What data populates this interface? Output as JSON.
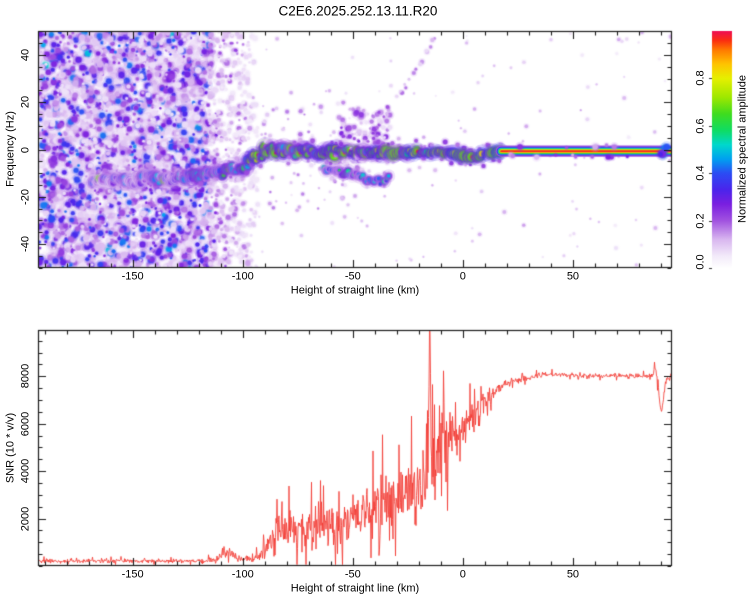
{
  "title": "C2E6.2025.252.13.11.R20",
  "chart_data": [
    {
      "type": "heatmap",
      "title": "C2E6.2025.252.13.11.R20",
      "xlabel": "Height of straight line (km)",
      "ylabel": "Frequency (Hz)",
      "xlim": [
        -193,
        95
      ],
      "ylim": [
        -50.2,
        50.2
      ],
      "xticks": [
        -150,
        -100,
        -50,
        0,
        50
      ],
      "xtick_labels": [
        "-150",
        "-100",
        "-50",
        "0",
        "50"
      ],
      "x_minor_step": 10,
      "yticks": [
        40,
        20,
        0,
        -20,
        -40
      ],
      "ytick_labels": [
        "40",
        "20",
        "0",
        "-20",
        "-40"
      ],
      "y_minor_step": 5,
      "grid": false,
      "colorbar": {
        "label": "Normalized spectral amplitude",
        "ticks": [
          0,
          0.2,
          0.4,
          0.6,
          0.8
        ],
        "tick_labels": [
          "0.0",
          "0.2",
          "0.4",
          "0.6",
          "0.8"
        ],
        "lim": [
          0,
          1
        ],
        "stops": [
          [
            0.0,
            "#ffffff"
          ],
          [
            0.05,
            "#f3ebfa"
          ],
          [
            0.12,
            "#d9b7f0"
          ],
          [
            0.2,
            "#a152e0"
          ],
          [
            0.27,
            "#7a1fe0"
          ],
          [
            0.33,
            "#4b24ec"
          ],
          [
            0.4,
            "#2b4df4"
          ],
          [
            0.46,
            "#00a1f0"
          ],
          [
            0.52,
            "#00d8cc"
          ],
          [
            0.58,
            "#0fdc64"
          ],
          [
            0.65,
            "#3fdc1f"
          ],
          [
            0.72,
            "#9ee800"
          ],
          [
            0.8,
            "#e6f000"
          ],
          [
            0.86,
            "#ffc400"
          ],
          [
            0.92,
            "#ff7a00"
          ],
          [
            0.96,
            "#fb2e10"
          ],
          [
            1.0,
            "#ee0c56"
          ]
        ]
      },
      "noise_region": {
        "x_dense": [
          -193,
          -115
        ],
        "x_fade": [
          -115,
          -93
        ]
      },
      "ridge_path": [
        [
          -168,
          -13.5
        ],
        [
          -158,
          -12.6
        ],
        [
          -150,
          -13.2
        ],
        [
          -142,
          -12.2
        ],
        [
          -134,
          -12.6
        ],
        [
          -126,
          -11.2
        ],
        [
          -118,
          -11.6
        ],
        [
          -110,
          -9.8
        ],
        [
          -103,
          -8.2
        ],
        [
          -97,
          -5.5
        ],
        [
          -92,
          -2.2
        ],
        [
          -88,
          0.8
        ],
        [
          -83,
          0.2
        ],
        [
          -77,
          -1.2
        ],
        [
          -71,
          -0.4
        ],
        [
          -65,
          -1.6
        ],
        [
          -59,
          -1.2
        ],
        [
          -53,
          -0.4
        ],
        [
          -47,
          -1.4
        ],
        [
          -41,
          -1.8
        ],
        [
          -35,
          -1.2
        ],
        [
          -29,
          -1.8
        ],
        [
          -23,
          -1.2
        ],
        [
          -17,
          -1.6
        ],
        [
          -11,
          -1.2
        ],
        [
          -5,
          -1.8
        ],
        [
          -1,
          -2.4
        ],
        [
          2,
          -3.4
        ],
        [
          5,
          -3.2
        ],
        [
          9,
          -2.2
        ],
        [
          13,
          -1.2
        ],
        [
          17.4,
          -0.8
        ]
      ],
      "ridge_brightness": [
        [
          -168,
          0.3
        ],
        [
          -150,
          0.34
        ],
        [
          -130,
          0.4
        ],
        [
          -115,
          0.46
        ],
        [
          -105,
          0.52
        ],
        [
          -95,
          0.62
        ],
        [
          -88,
          0.66
        ],
        [
          -78,
          0.58
        ],
        [
          -65,
          0.6
        ],
        [
          -52,
          0.62
        ],
        [
          -42,
          0.64
        ],
        [
          -32,
          0.66
        ],
        [
          -20,
          0.68
        ],
        [
          -8,
          0.7
        ],
        [
          5,
          0.7
        ],
        [
          17,
          0.76
        ]
      ],
      "ridge_spread_hz": [
        [
          -168,
          3.0
        ],
        [
          -120,
          3.2
        ],
        [
          -100,
          3.8
        ],
        [
          -80,
          3.4
        ],
        [
          -60,
          2.8
        ],
        [
          -40,
          2.2
        ],
        [
          -28,
          1.5
        ],
        [
          -15,
          1.2
        ],
        [
          0,
          1.1
        ],
        [
          17,
          0.9
        ]
      ],
      "core_probability": [
        [
          -168,
          0.01
        ],
        [
          -110,
          0.02
        ],
        [
          -100,
          0.2
        ],
        [
          -93,
          0.5
        ],
        [
          -86,
          0.45
        ],
        [
          -80,
          0.12
        ],
        [
          -60,
          0.12
        ],
        [
          -46,
          0.2
        ],
        [
          -36,
          0.38
        ],
        [
          -25,
          0.45
        ],
        [
          -12,
          0.45
        ],
        [
          0,
          0.5
        ],
        [
          17,
          0.55
        ]
      ],
      "secondary_path": [
        [
          -63,
          -7.5
        ],
        [
          -56,
          -9.5
        ],
        [
          -49,
          -11
        ],
        [
          -42,
          -12.8
        ],
        [
          -37,
          -13.6
        ],
        [
          -33,
          -12.2
        ]
      ],
      "upper_trail": {
        "from": [
          -42,
          4
        ],
        "to": [
          -13,
          46
        ]
      },
      "cloud": {
        "x_range": [
          -57,
          -33
        ],
        "f_range": [
          -5,
          16
        ]
      },
      "band": {
        "x_range": [
          17.4,
          94.2
        ],
        "freq": -0.7,
        "layers": [
          [
            5.6,
            0.2
          ],
          [
            4.4,
            0.34
          ],
          [
            3.4,
            0.5
          ],
          [
            2.5,
            0.66
          ],
          [
            1.8,
            0.82
          ],
          [
            1.0,
            0.97
          ]
        ]
      }
    },
    {
      "type": "line",
      "xlabel": "Height of straight line (km)",
      "ylabel": "SNR (10 * v/v)",
      "xlim": [
        -193,
        95
      ],
      "ylim": [
        0,
        9950
      ],
      "xticks": [
        -150,
        -100,
        -50,
        0,
        50
      ],
      "xtick_labels": [
        "-150",
        "-100",
        "-50",
        "0",
        "50"
      ],
      "x_minor_step": 10,
      "yticks": [
        2000,
        4000,
        6000,
        8000
      ],
      "ytick_labels": [
        "2000",
        "4000",
        "6000",
        "8000"
      ],
      "y_minor_step": 500,
      "grid": false,
      "series": [
        {
          "name": "SNR",
          "color": "#f23b34",
          "profile": [
            [
              -193,
              210,
              130
            ],
            [
              -150,
              210,
              130
            ],
            [
              -118,
              220,
              150
            ],
            [
              -112,
              260,
              200
            ],
            [
              -109,
              520,
              450
            ],
            [
              -106,
              560,
              480
            ],
            [
              -103,
              330,
              260
            ],
            [
              -99,
              280,
              220
            ],
            [
              -95,
              330,
              280
            ],
            [
              -91,
              520,
              480
            ],
            [
              -88,
              900,
              850
            ],
            [
              -85,
              1500,
              1400
            ],
            [
              -80,
              1600,
              1500
            ],
            [
              -74,
              1500,
              1400
            ],
            [
              -68,
              1700,
              1500
            ],
            [
              -62,
              1800,
              1600
            ],
            [
              -56,
              1700,
              1500
            ],
            [
              -50,
              2100,
              1700
            ],
            [
              -45,
              2300,
              1800
            ],
            [
              -41,
              2500,
              2000
            ],
            [
              -37,
              2300,
              2100
            ],
            [
              -33,
              2800,
              2300
            ],
            [
              -29,
              3100,
              2400
            ],
            [
              -25,
              3000,
              2600
            ],
            [
              -21,
              3200,
              2700
            ],
            [
              -17,
              3600,
              3000
            ],
            [
              -15.5,
              5200,
              4000
            ],
            [
              -14,
              4200,
              3200
            ],
            [
              -12,
              4500,
              2800
            ],
            [
              -10,
              5000,
              2600
            ],
            [
              -8,
              5200,
              2400
            ],
            [
              -6,
              5300,
              2200
            ],
            [
              -4,
              5500,
              2000
            ],
            [
              -2,
              5600,
              1900
            ],
            [
              0,
              5800,
              1700
            ],
            [
              2,
              5900,
              1600
            ],
            [
              4,
              6100,
              1400
            ],
            [
              6,
              6400,
              1200
            ],
            [
              8,
              6600,
              1000
            ],
            [
              10,
              6900,
              900
            ],
            [
              12,
              7100,
              750
            ],
            [
              14,
              7300,
              600
            ],
            [
              16,
              7500,
              480
            ],
            [
              18,
              7600,
              380
            ],
            [
              20,
              7700,
              300
            ],
            [
              23,
              7800,
              240
            ],
            [
              26,
              7850,
              200
            ],
            [
              30,
              7950,
              170
            ],
            [
              35,
              8050,
              160
            ],
            [
              40,
              8080,
              150
            ],
            [
              45,
              8060,
              150
            ],
            [
              50,
              8030,
              150
            ],
            [
              55,
              8010,
              150
            ],
            [
              60,
              8030,
              150
            ],
            [
              65,
              8020,
              150
            ],
            [
              70,
              8040,
              150
            ],
            [
              75,
              8020,
              160
            ],
            [
              80,
              8000,
              160
            ],
            [
              84,
              8010,
              170
            ],
            [
              86,
              8050,
              200
            ],
            [
              87.5,
              8350,
              260
            ],
            [
              88.5,
              8050,
              500
            ],
            [
              89.5,
              6900,
              450
            ],
            [
              90.3,
              6500,
              300
            ],
            [
              91,
              7100,
              400
            ],
            [
              92,
              7700,
              300
            ],
            [
              93,
              7900,
              250
            ],
            [
              95,
              7850,
              220
            ]
          ],
          "max_spike": {
            "x": -15,
            "value": 9900
          }
        }
      ]
    }
  ]
}
